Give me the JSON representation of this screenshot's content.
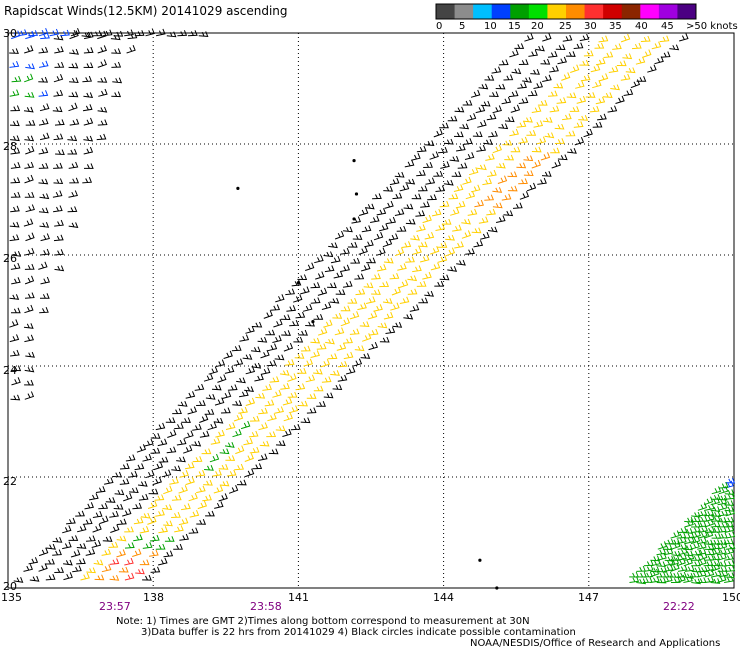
{
  "title": "Rapidscat Winds(12.5KM) 20141029 ascending",
  "color_scale": {
    "labels": [
      "0",
      "5",
      "10",
      "15",
      "20",
      "25",
      "30",
      "35",
      "40",
      "45",
      ">50 knots"
    ],
    "colors": [
      "#444444",
      "#8c8c8c",
      "#00bfff",
      "#0040ff",
      "#00a000",
      "#00e000",
      "#ffd000",
      "#ff8c00",
      "#ff3030",
      "#d00000",
      "#8b2500",
      "#ff00ff",
      "#a000e0",
      "#4b0082"
    ]
  },
  "axes": {
    "x_labels": [
      "135",
      "138",
      "141",
      "144",
      "147",
      "150"
    ],
    "y_labels": [
      "30",
      "28",
      "26",
      "24",
      "22",
      "20"
    ]
  },
  "pass_times": [
    "23:57",
    "23:58",
    "22:22"
  ],
  "notes": {
    "line1": "Note: 1) Times are GMT 2)Times along bottom correspond to measurement at 30N",
    "line2": "3)Data buffer is 22 hrs from 20141029 4) Black circles indicate possible contamination",
    "credit": "NOAA/NESDIS/Office of Research and Applications"
  },
  "map": {
    "projection": "equirectangular",
    "lon_range": [
      135,
      150
    ],
    "lat_range": [
      20,
      30
    ],
    "grid_lines": "dotted",
    "swaths": [
      {
        "type": "main-ascending-swath",
        "dominant_colors": [
          "#000000",
          "#ffd000",
          "#ff8c00",
          "#ff3030",
          "#00a000"
        ]
      },
      {
        "type": "northwest-corner-winds",
        "dominant_colors": [
          "#000000",
          "#0040ff",
          "#00a000"
        ]
      },
      {
        "type": "southeast-corner-winds",
        "dominant_colors": [
          "#00a000",
          "#0040ff"
        ]
      }
    ]
  }
}
